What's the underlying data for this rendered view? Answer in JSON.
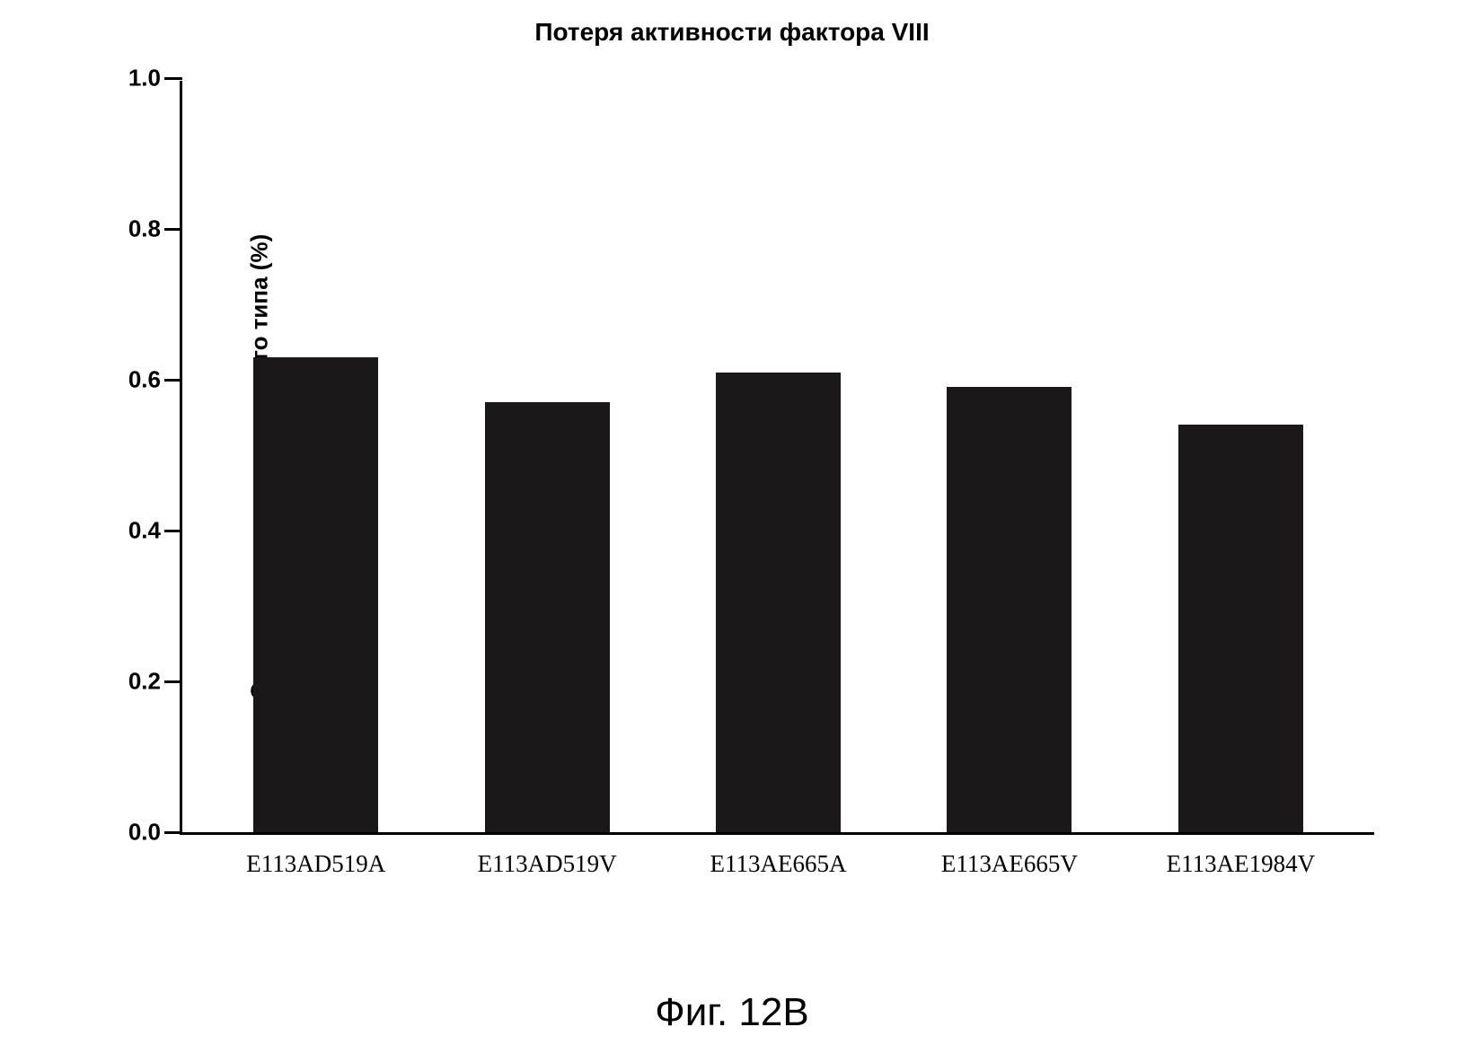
{
  "chart": {
    "type": "bar",
    "title": "Потеря активности фактора VIII",
    "title_fontsize": 28,
    "title_weight": "bold",
    "ylabel": "Скорость относительно дикого типа (%)",
    "ylabel_fontsize": 26,
    "ylabel_weight": "bold",
    "categories": [
      "E113AD519A",
      "E113AD519V",
      "E113AE665A",
      "E113AE665V",
      "E113AE1984V"
    ],
    "values": [
      0.63,
      0.57,
      0.61,
      0.59,
      0.54
    ],
    "ylim": [
      0.0,
      1.0
    ],
    "ytick_step": 0.2,
    "yticks": [
      "0.0",
      "0.2",
      "0.4",
      "0.6",
      "0.8",
      "1.0"
    ],
    "ytick_fontsize": 26,
    "xtick_fontsize": 27,
    "bar_color": "#1a1818",
    "bar_width": 0.54,
    "background_color": "#ffffff",
    "axis_color": "#000000",
    "axis_width": 3,
    "tick_length": 20
  },
  "caption": {
    "text": "Фиг. 12B",
    "fontsize": 44
  }
}
